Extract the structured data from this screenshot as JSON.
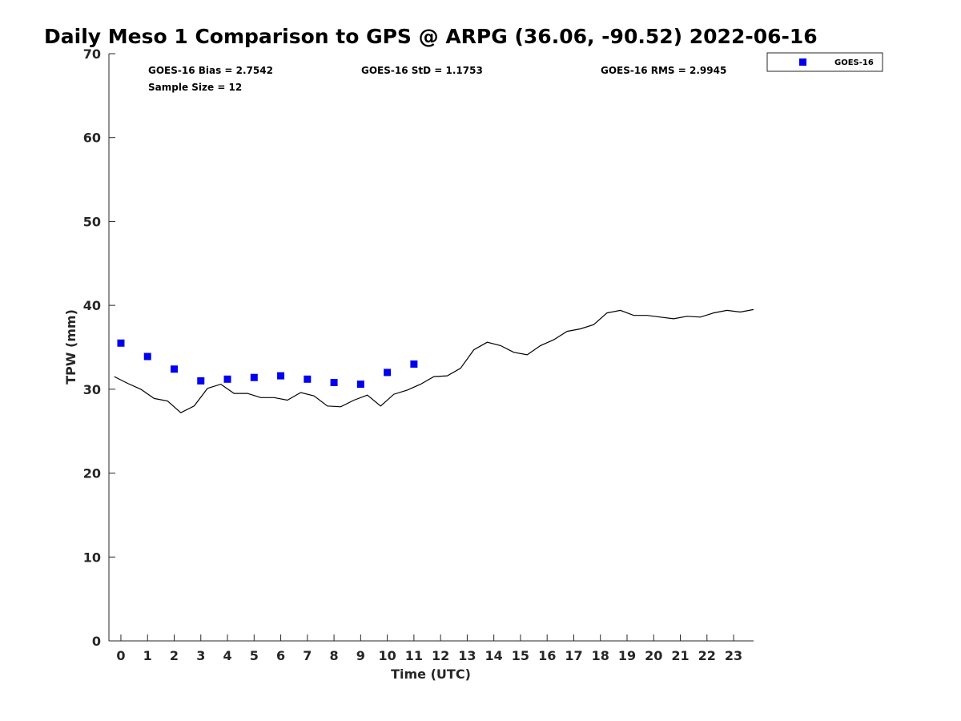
{
  "chart_data": {
    "type": "scatter",
    "title": "Daily Meso 1 Comparison to GPS @ ARPG (36.06, -90.52) 2022-06-16",
    "xlabel": "Time (UTC)",
    "ylabel": "TPW (mm)",
    "xlim": [
      -0.45,
      23.75
    ],
    "ylim": [
      0,
      70
    ],
    "x_ticks": [
      0,
      1,
      2,
      3,
      4,
      5,
      6,
      7,
      8,
      9,
      10,
      11,
      12,
      13,
      14,
      15,
      16,
      17,
      18,
      19,
      20,
      21,
      22,
      23
    ],
    "y_ticks": [
      0,
      10,
      20,
      30,
      40,
      50,
      60,
      70
    ],
    "grid": false,
    "legend_position": "outside-top-right",
    "stats": [
      "GOES-16 Bias = 2.7542",
      "GOES-16 StD = 1.1753",
      "GOES-16 RMS = 2.9945",
      "Sample Size = 12"
    ],
    "series": [
      {
        "name": "GOES-16",
        "kind": "scatter",
        "marker": "square",
        "color": "#0000ee",
        "x": [
          0,
          1,
          2,
          3,
          4,
          5,
          6,
          7,
          8,
          9,
          10,
          11
        ],
        "y": [
          35.5,
          33.9,
          32.4,
          31.0,
          31.2,
          31.4,
          31.6,
          31.2,
          30.8,
          30.6,
          32.0,
          33.0
        ]
      },
      {
        "kind": "line",
        "color": "#000000",
        "x": [
          -0.25,
          0.25,
          0.75,
          1.25,
          1.75,
          2.25,
          2.75,
          3.25,
          3.75,
          4.25,
          4.75,
          5.25,
          5.75,
          6.25,
          6.75,
          7.25,
          7.75,
          8.25,
          8.75,
          9.25,
          9.75,
          10.25,
          10.75,
          11.25,
          11.75,
          12.25,
          12.75,
          13.25,
          13.75,
          14.25,
          14.75,
          15.25,
          15.75,
          16.25,
          16.75,
          17.25,
          17.75,
          18.25,
          18.75,
          19.25,
          19.75,
          20.25,
          20.75,
          21.25,
          21.75,
          22.25,
          22.75,
          23.25,
          23.75
        ],
        "y": [
          31.5,
          30.7,
          30.0,
          28.9,
          28.6,
          27.2,
          28.0,
          30.1,
          30.6,
          29.5,
          29.5,
          29.0,
          29.0,
          28.7,
          29.6,
          29.2,
          28.0,
          27.9,
          28.7,
          29.3,
          28.0,
          29.4,
          29.9,
          30.6,
          31.5,
          31.6,
          32.5,
          34.7,
          35.6,
          35.2,
          34.4,
          34.1,
          35.2,
          35.9,
          36.9,
          37.2,
          37.7,
          39.1,
          39.4,
          38.8,
          38.8,
          38.6,
          38.4,
          38.7,
          38.6,
          39.1,
          39.4,
          39.2,
          39.5
        ]
      }
    ]
  }
}
